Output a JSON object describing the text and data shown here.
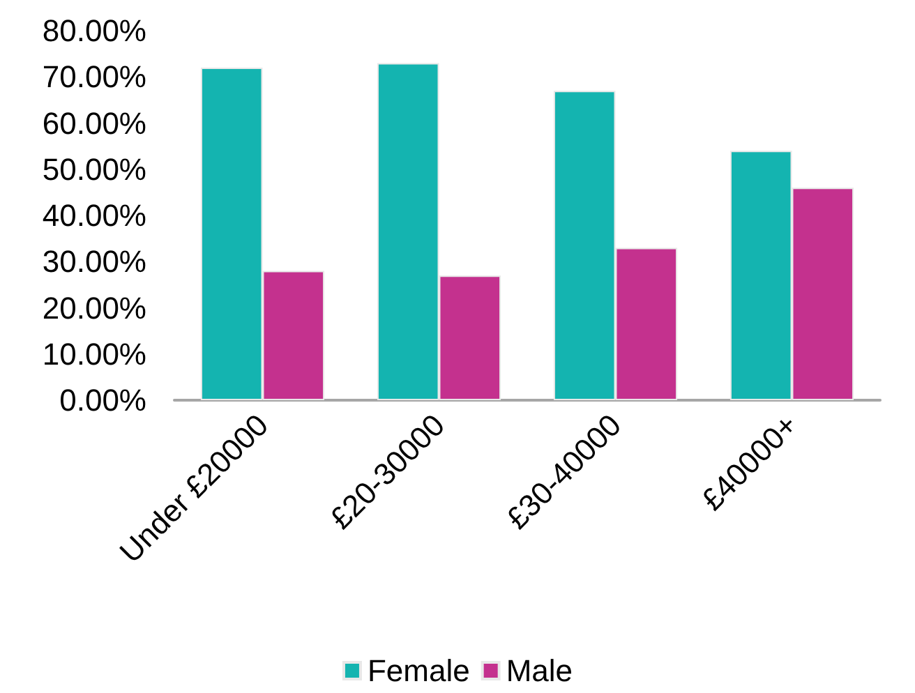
{
  "chart_data": {
    "type": "bar",
    "categories": [
      "Under £20000",
      "£20-30000",
      "£30-40000",
      "£40000+"
    ],
    "series": [
      {
        "name": "Female",
        "color": "#14b4b0",
        "values": [
          72,
          73,
          67,
          54
        ]
      },
      {
        "name": "Male",
        "color": "#c4318e",
        "values": [
          28,
          27,
          33,
          46
        ]
      }
    ],
    "ylim": [
      0,
      80
    ],
    "yticks": [
      {
        "value": 0,
        "label": "0.00%"
      },
      {
        "value": 10,
        "label": "10.00%"
      },
      {
        "value": 20,
        "label": "20.00%"
      },
      {
        "value": 30,
        "label": "30.00%"
      },
      {
        "value": 40,
        "label": "40.00%"
      },
      {
        "value": 50,
        "label": "50.00%"
      },
      {
        "value": 60,
        "label": "60.00%"
      },
      {
        "value": 70,
        "label": "70.00%"
      },
      {
        "value": 80,
        "label": "80.00%"
      }
    ],
    "grid": false,
    "legend": "bottom"
  }
}
